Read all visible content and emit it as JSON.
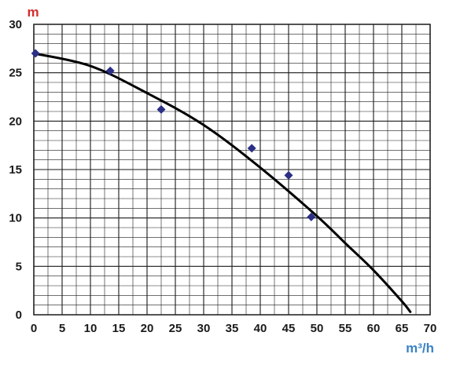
{
  "chart_data": {
    "type": "scatter",
    "title": "",
    "xlabel": "m³/h",
    "ylabel": "m",
    "xlim": [
      0,
      70
    ],
    "ylim": [
      0,
      30
    ],
    "x_ticks": [
      0,
      5,
      10,
      15,
      20,
      25,
      30,
      35,
      40,
      45,
      50,
      55,
      60,
      65,
      70
    ],
    "y_ticks": [
      0,
      5,
      10,
      15,
      20,
      25,
      30
    ],
    "x_minor_step": 2.5,
    "y_minor_step": 1,
    "grid": true,
    "legend": "none",
    "series": [
      {
        "type": "scatter",
        "marker": "diamond",
        "color": "#2b2f85",
        "points": [
          {
            "x": 0.3,
            "y": 27.0
          },
          {
            "x": 13.5,
            "y": 25.2
          },
          {
            "x": 22.5,
            "y": 21.2
          },
          {
            "x": 38.5,
            "y": 17.2
          },
          {
            "x": 45.0,
            "y": 14.4
          },
          {
            "x": 49.0,
            "y": 10.1
          }
        ]
      },
      {
        "type": "line",
        "color": "#000000",
        "points": [
          {
            "x": 0,
            "y": 27.0
          },
          {
            "x": 10,
            "y": 25.7
          },
          {
            "x": 20,
            "y": 22.9
          },
          {
            "x": 30,
            "y": 19.6
          },
          {
            "x": 40,
            "y": 15.2
          },
          {
            "x": 50,
            "y": 10.2
          },
          {
            "x": 55,
            "y": 7.4
          },
          {
            "x": 60,
            "y": 4.6
          },
          {
            "x": 65,
            "y": 1.4
          },
          {
            "x": 66.5,
            "y": 0.3
          }
        ]
      }
    ],
    "colors": {
      "ylabel": "#d62c2c",
      "xlabel": "#3b82c4",
      "grid": "#1a1a1a",
      "marker": "#2b2f85",
      "curve": "#000000"
    }
  }
}
